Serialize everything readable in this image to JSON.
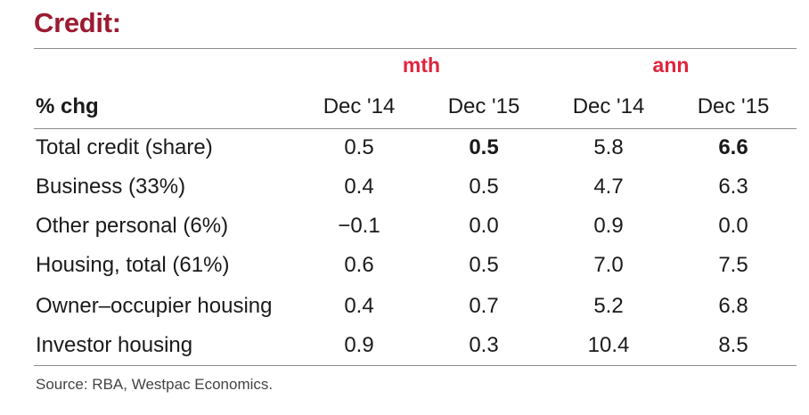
{
  "title": "Credit:",
  "groups": {
    "mth": "mth",
    "ann": "ann"
  },
  "header": {
    "label": "% chg",
    "columns": [
      "Dec '14",
      "Dec '15",
      "Dec '14",
      "Dec '15"
    ]
  },
  "rows": [
    {
      "label": "Total credit (share)",
      "values": [
        "0.5",
        "0.5",
        "5.8",
        "6.6"
      ]
    },
    {
      "label": "Business (33%)",
      "values": [
        "0.4",
        "0.5",
        "4.7",
        "6.3"
      ]
    },
    {
      "label": "Other personal (6%)",
      "values": [
        "−0.1",
        "0.0",
        "0.9",
        "0.0"
      ]
    },
    {
      "label": "Housing, total (61%)",
      "values": [
        "0.6",
        "0.5",
        "7.0",
        "7.5"
      ]
    },
    {
      "label": "Owner–occupier housing",
      "values": [
        "0.4",
        "0.7",
        "5.2",
        "6.8"
      ]
    },
    {
      "label": "Investor housing",
      "values": [
        "0.9",
        "0.3",
        "10.4",
        "8.5"
      ]
    }
  ],
  "source": "Source: RBA, Westpac Economics."
}
